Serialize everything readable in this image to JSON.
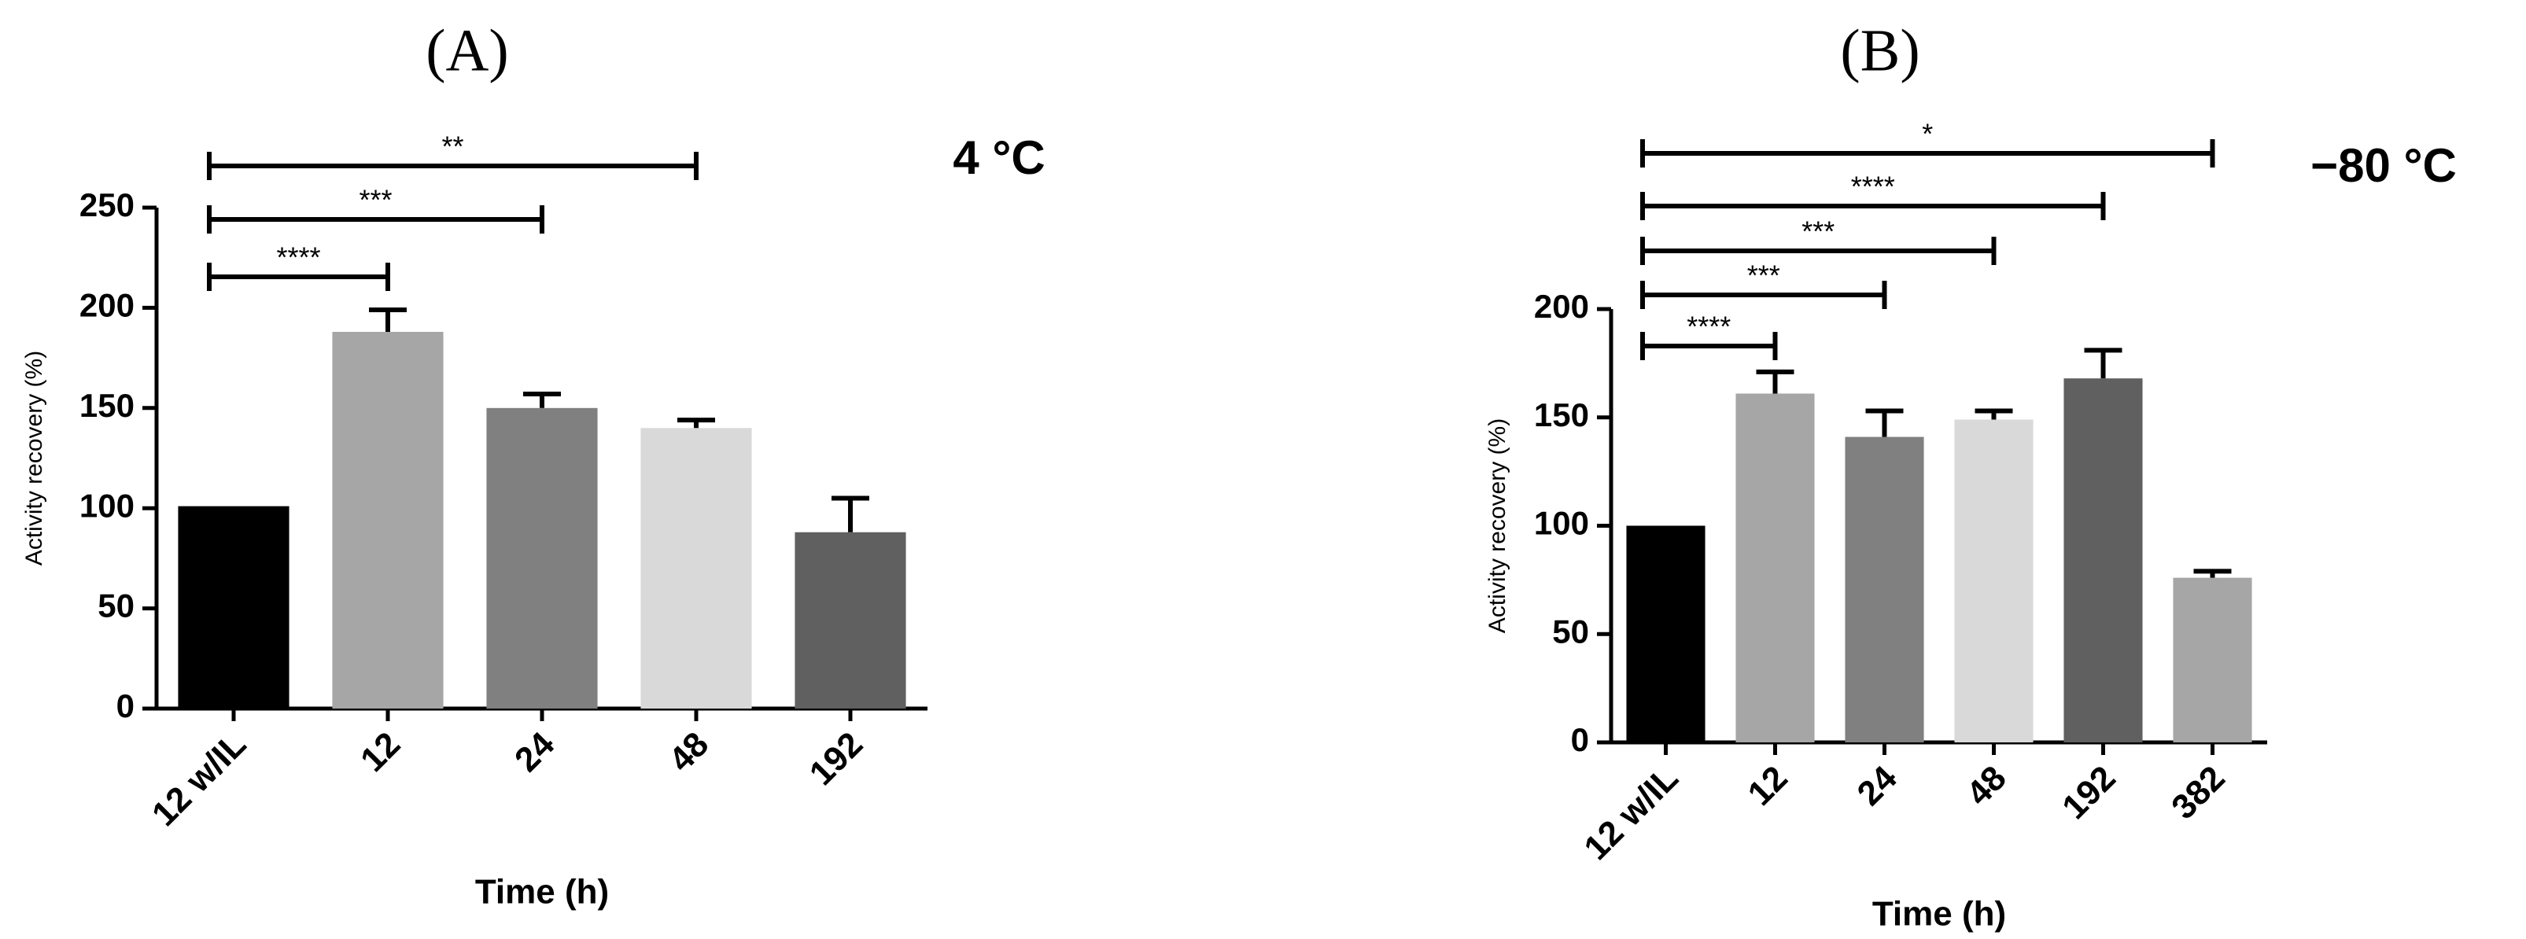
{
  "chart_data": [
    {
      "type": "bar",
      "title": "(A)",
      "annotation": "4 °C",
      "xlabel": "Time (h)",
      "ylabel": "Activity recovery (%)",
      "categories": [
        "12 w/IL",
        "12",
        "24",
        "48",
        "192"
      ],
      "values": [
        101,
        188,
        150,
        140,
        88
      ],
      "errors": [
        null,
        11,
        7,
        4,
        17
      ],
      "colors": [
        "#000000",
        "#a6a6a6",
        "#808080",
        "#d9d9d9",
        "#606060"
      ],
      "ylim": [
        0,
        250
      ],
      "yticks": [
        0,
        50,
        100,
        150,
        200,
        250
      ],
      "grid": false,
      "significance": [
        {
          "label": "****",
          "between": [
            "12 w/IL",
            "12"
          ]
        },
        {
          "label": "***",
          "between": [
            "12 w/IL",
            "24"
          ]
        },
        {
          "label": "**",
          "between": [
            "12 w/IL",
            "48"
          ]
        }
      ]
    },
    {
      "type": "bar",
      "title": "(B)",
      "annotation": "−80 °C",
      "xlabel": "Time (h)",
      "ylabel": "Activity recovery (%)",
      "categories": [
        "12 w/IL",
        "12",
        "24",
        "48",
        "192",
        "382"
      ],
      "values": [
        100,
        161,
        141,
        149,
        168,
        76
      ],
      "errors": [
        null,
        10,
        12,
        4,
        13,
        3
      ],
      "colors": [
        "#000000",
        "#a6a6a6",
        "#808080",
        "#d9d9d9",
        "#606060",
        "#a6a6a6"
      ],
      "ylim": [
        0,
        200
      ],
      "yticks": [
        0,
        50,
        100,
        150,
        200
      ],
      "grid": false,
      "significance": [
        {
          "label": "****",
          "between": [
            "12 w/IL",
            "12"
          ]
        },
        {
          "label": "***",
          "between": [
            "12 w/IL",
            "24"
          ]
        },
        {
          "label": "***",
          "between": [
            "12 w/IL",
            "48"
          ]
        },
        {
          "label": "****",
          "between": [
            "12 w/IL",
            "192"
          ]
        },
        {
          "label": "*",
          "between": [
            "12 w/IL",
            "382"
          ]
        }
      ]
    }
  ]
}
